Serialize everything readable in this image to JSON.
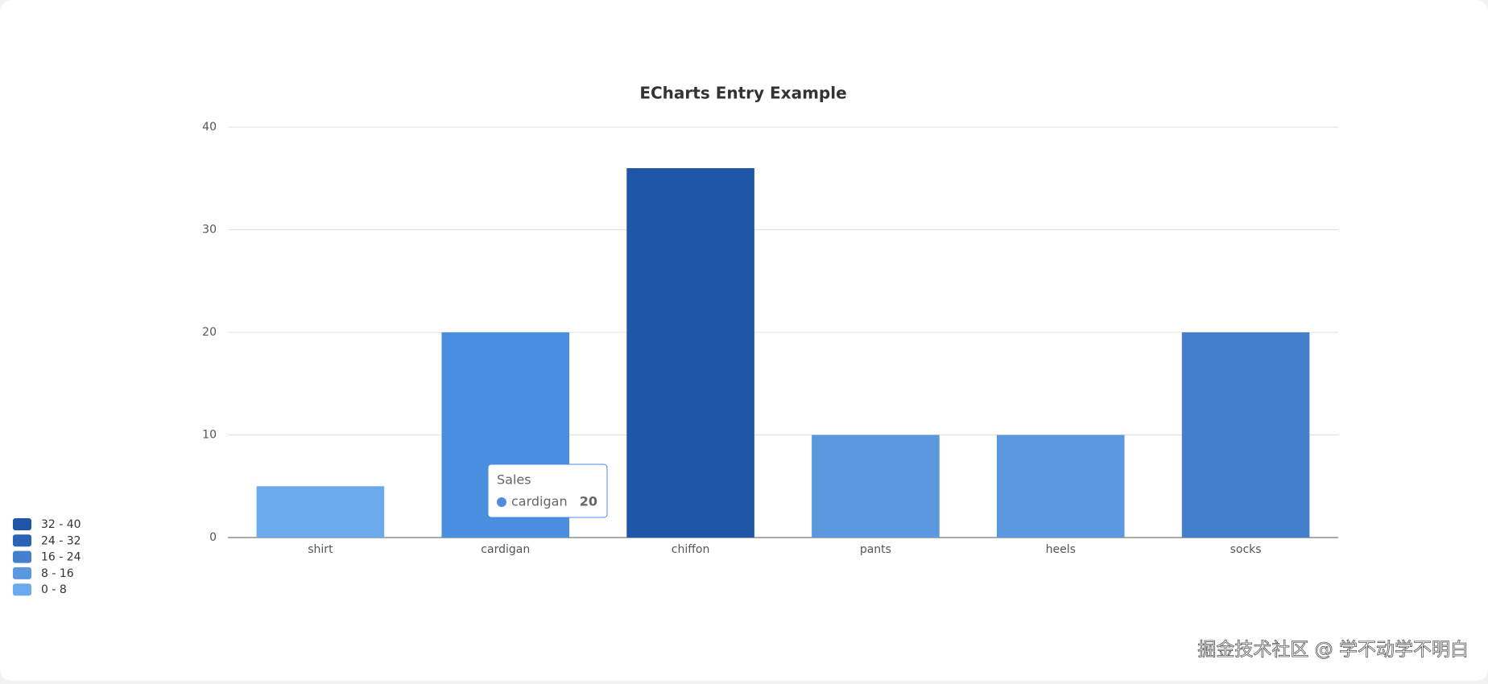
{
  "chart_data": {
    "type": "bar",
    "title": "ECharts Entry Example",
    "categories": [
      "shirt",
      "cardigan",
      "chiffon",
      "pants",
      "heels",
      "socks"
    ],
    "series": [
      {
        "name": "Sales",
        "values": [
          5,
          20,
          36,
          10,
          10,
          20
        ],
        "colors": [
          "#6aaaed",
          "#4a8ee0",
          "#1e56a8",
          "#5b98e0",
          "#5b98e0",
          "#4580cc"
        ]
      }
    ],
    "ylim": [
      0,
      40
    ],
    "yticks": [
      0,
      10,
      20,
      30,
      40
    ],
    "grid": true,
    "visual_map": {
      "position": "bottom-left",
      "pieces": [
        {
          "label": "32 - 40",
          "color": "#1e56a8"
        },
        {
          "label": "24 - 32",
          "color": "#2a64b5"
        },
        {
          "label": "16 - 24",
          "color": "#4580cc"
        },
        {
          "label": "8 - 16",
          "color": "#5b98e0"
        },
        {
          "label": "0 - 8",
          "color": "#6aaaed"
        }
      ]
    },
    "tooltip": {
      "category_index": 1
    },
    "watermark": "掘金技术社区 @ 学不动学不明白"
  }
}
